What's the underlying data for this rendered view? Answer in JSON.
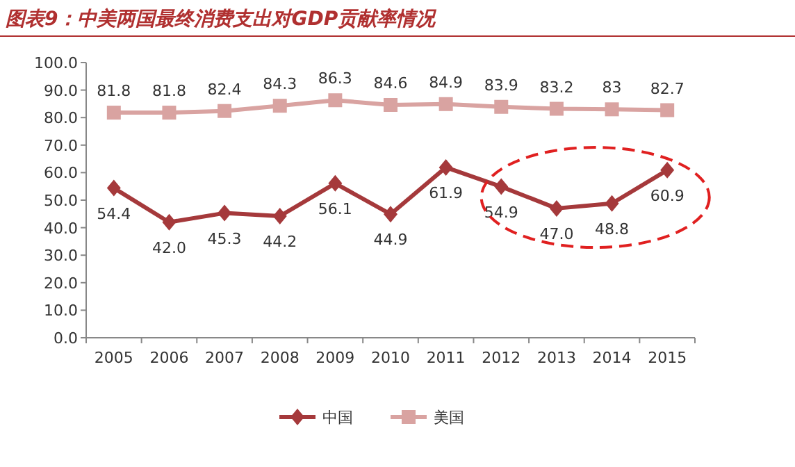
{
  "chart_data": {
    "type": "line",
    "title": "图表9：中美两国最终消费支出对GDP贡献率情况",
    "categories": [
      "2005",
      "2006",
      "2007",
      "2008",
      "2009",
      "2010",
      "2011",
      "2012",
      "2013",
      "2014",
      "2015"
    ],
    "series": [
      {
        "name": "中国",
        "color": "#a5393b",
        "marker": "diamond",
        "values": [
          54.4,
          42.0,
          45.3,
          44.2,
          56.1,
          44.9,
          61.9,
          54.9,
          47.0,
          48.8,
          60.9
        ],
        "value_labels": [
          "54.4",
          "42.0",
          "45.3",
          "44.2",
          "56.1",
          "44.9",
          "61.9",
          "54.9",
          "47.0",
          "48.8",
          "60.9"
        ]
      },
      {
        "name": "美国",
        "color": "#d9a3a1",
        "marker": "square",
        "values": [
          81.8,
          81.8,
          82.4,
          84.3,
          86.3,
          84.6,
          84.9,
          83.9,
          83.2,
          83,
          82.7
        ],
        "value_labels": [
          "81.8",
          "81.8",
          "82.4",
          "84.3",
          "86.3",
          "84.6",
          "84.9",
          "83.9",
          "83.2",
          "83",
          "82.7"
        ]
      }
    ],
    "ylim": [
      0,
      100
    ],
    "yticks": [
      {
        "value": 0,
        "label": "0.0"
      },
      {
        "value": 10,
        "label": "10.0"
      },
      {
        "value": 20,
        "label": "20.0"
      },
      {
        "value": 30,
        "label": "30.0"
      },
      {
        "value": 40,
        "label": "40.0"
      },
      {
        "value": 50,
        "label": "50.0"
      },
      {
        "value": 60,
        "label": "60.0"
      },
      {
        "value": 70,
        "label": "70.0"
      },
      {
        "value": 80,
        "label": "80.0"
      },
      {
        "value": 90,
        "label": "90.0"
      },
      {
        "value": 100,
        "label": "100.0"
      }
    ],
    "legend": "bottom"
  }
}
